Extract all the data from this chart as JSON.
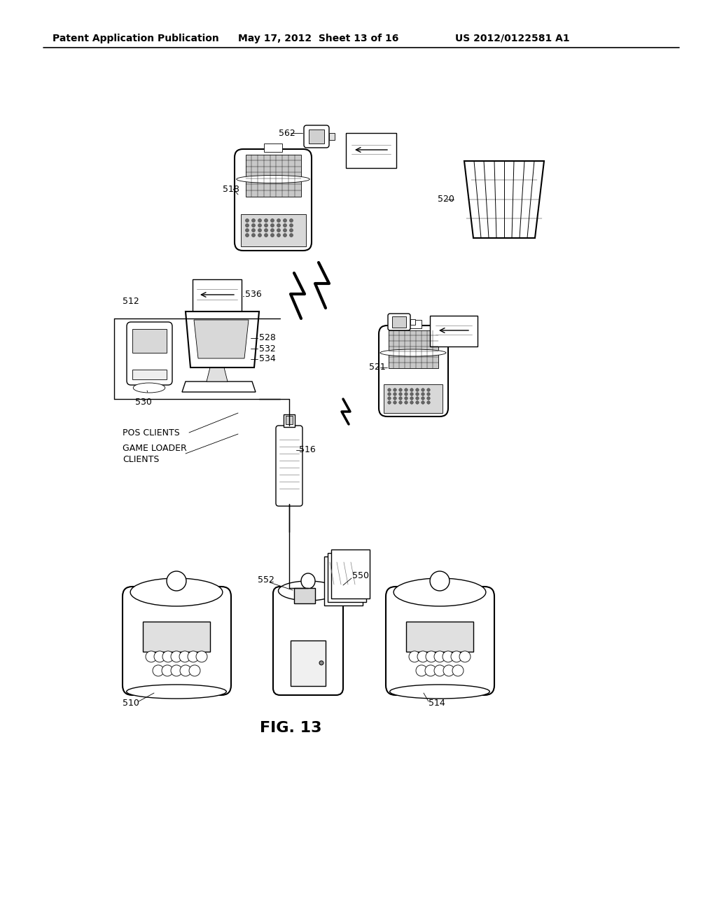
{
  "background": "#ffffff",
  "header_left": "Patent Application Publication",
  "header_mid": "May 17, 2012  Sheet 13 of 16",
  "header_right": "US 2012/0122581 A1",
  "fig_label": "FIG. 13",
  "line_color": "#000000"
}
